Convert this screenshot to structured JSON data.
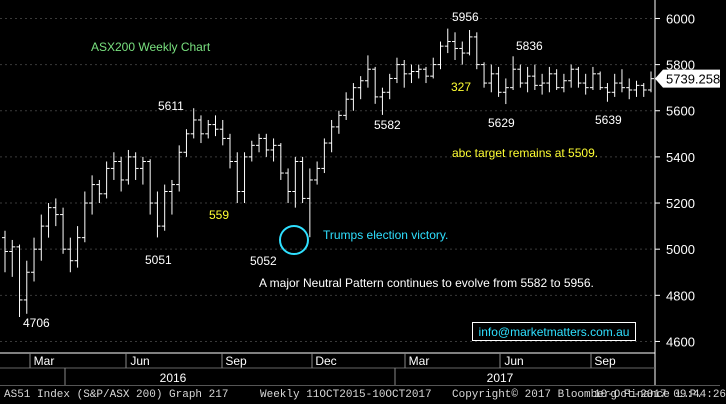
{
  "footer": {
    "security": "AS51 Index (S&P/ASX 200) Graph 217",
    "period": "Weekly 11OCT2015-10OCT2017",
    "copyright": "Copyright© 2017 Bloomberg Finance L.P.",
    "timestamp": "10-Oct-2017 09:44:26"
  },
  "email": "info@marketmatters.com.au",
  "colors": {
    "background": "#000000",
    "bars": "#ffffff",
    "title_text": "#79e07f",
    "yellow_text": "#ffff33",
    "cyan": "#2fe0ff",
    "tag_fill": "#ffffff"
  },
  "chart_data": {
    "type": "ohlc",
    "title": "ASX200 Weekly Chart",
    "frequency": "weekly",
    "ylim": [
      4550,
      6080
    ],
    "y_ticks": [
      4600,
      4800,
      5000,
      5200,
      5400,
      5600,
      5800,
      6000
    ],
    "x_month_labels": [
      "Mar",
      "Jun",
      "Sep",
      "Dec",
      "Mar",
      "Jun",
      "Sep"
    ],
    "x_year_labels": [
      "2016",
      "2017"
    ],
    "last_price": "5739.258",
    "annotations": {
      "chart_title": "ASX200 Weekly Chart",
      "neutral_pattern": "A major Neutral Pattern continues to evolve from 5582 to 5956.",
      "abc_target": "abc target remains at 5509.",
      "election": "Trumps election victory.",
      "low_4706": "4706",
      "high_5611": "5611",
      "low_5051": "5051",
      "low_559": "559",
      "low_5052": "5052",
      "low_5582": "5582",
      "high_5956": "5956",
      "high_327": "327",
      "high_5836": "5836",
      "low_5629": "5629",
      "low_5639": "5639"
    },
    "bars": [
      [
        5050,
        5080,
        4900,
        4990
      ],
      [
        4990,
        5040,
        4880,
        5010
      ],
      [
        5010,
        5020,
        4706,
        4780
      ],
      [
        4780,
        4950,
        4720,
        4900
      ],
      [
        4900,
        5050,
        4860,
        5000
      ],
      [
        5000,
        5150,
        4950,
        5100
      ],
      [
        5100,
        5200,
        5050,
        5180
      ],
      [
        5180,
        5220,
        5100,
        5150
      ],
      [
        5150,
        5180,
        4980,
        5000
      ],
      [
        5000,
        5050,
        4900,
        4950
      ],
      [
        4950,
        5100,
        4920,
        5050
      ],
      [
        5050,
        5250,
        5030,
        5200
      ],
      [
        5200,
        5320,
        5150,
        5280
      ],
      [
        5280,
        5300,
        5200,
        5240
      ],
      [
        5240,
        5380,
        5220,
        5350
      ],
      [
        5350,
        5420,
        5300,
        5380
      ],
      [
        5380,
        5400,
        5250,
        5300
      ],
      [
        5300,
        5430,
        5280,
        5400
      ],
      [
        5400,
        5420,
        5300,
        5350
      ],
      [
        5350,
        5400,
        5280,
        5380
      ],
      [
        5380,
        5390,
        5150,
        5200
      ],
      [
        5200,
        5250,
        5051,
        5100
      ],
      [
        5100,
        5280,
        5080,
        5250
      ],
      [
        5250,
        5300,
        5150,
        5280
      ],
      [
        5280,
        5450,
        5250,
        5420
      ],
      [
        5420,
        5520,
        5400,
        5500
      ],
      [
        5500,
        5611,
        5480,
        5560
      ],
      [
        5560,
        5580,
        5460,
        5500
      ],
      [
        5500,
        5560,
        5480,
        5540
      ],
      [
        5540,
        5580,
        5490,
        5520
      ],
      [
        5520,
        5560,
        5450,
        5480
      ],
      [
        5480,
        5500,
        5350,
        5380
      ],
      [
        5380,
        5420,
        5200,
        5250
      ],
      [
        5250,
        5420,
        5200,
        5400
      ],
      [
        5400,
        5470,
        5380,
        5450
      ],
      [
        5450,
        5500,
        5420,
        5480
      ],
      [
        5480,
        5500,
        5400,
        5430
      ],
      [
        5430,
        5480,
        5380,
        5450
      ],
      [
        5450,
        5460,
        5300,
        5330
      ],
      [
        5330,
        5350,
        5200,
        5250
      ],
      [
        5250,
        5400,
        5180,
        5380
      ],
      [
        5380,
        5400,
        5200,
        5220
      ],
      [
        5220,
        5350,
        5052,
        5300
      ],
      [
        5300,
        5380,
        5280,
        5350
      ],
      [
        5350,
        5480,
        5330,
        5460
      ],
      [
        5460,
        5560,
        5420,
        5530
      ],
      [
        5530,
        5600,
        5500,
        5580
      ],
      [
        5580,
        5680,
        5560,
        5650
      ],
      [
        5650,
        5720,
        5600,
        5700
      ],
      [
        5700,
        5750,
        5650,
        5730
      ],
      [
        5730,
        5840,
        5700,
        5780
      ],
      [
        5780,
        5790,
        5630,
        5660
      ],
      [
        5660,
        5700,
        5582,
        5680
      ],
      [
        5680,
        5760,
        5650,
        5740
      ],
      [
        5740,
        5830,
        5720,
        5800
      ],
      [
        5800,
        5820,
        5700,
        5760
      ],
      [
        5760,
        5800,
        5720,
        5770
      ],
      [
        5770,
        5800,
        5740,
        5780
      ],
      [
        5780,
        5790,
        5720,
        5750
      ],
      [
        5750,
        5830,
        5740,
        5800
      ],
      [
        5800,
        5900,
        5780,
        5880
      ],
      [
        5880,
        5956,
        5850,
        5900
      ],
      [
        5900,
        5940,
        5820,
        5870
      ],
      [
        5870,
        5900,
        5800,
        5850
      ],
      [
        5850,
        5950,
        5840,
        5920
      ],
      [
        5920,
        5940,
        5780,
        5800
      ],
      [
        5800,
        5810,
        5700,
        5720
      ],
      [
        5720,
        5800,
        5680,
        5760
      ],
      [
        5760,
        5790,
        5660,
        5680
      ],
      [
        5680,
        5740,
        5629,
        5700
      ],
      [
        5700,
        5836,
        5690,
        5780
      ],
      [
        5780,
        5800,
        5700,
        5720
      ],
      [
        5720,
        5790,
        5680,
        5750
      ],
      [
        5750,
        5800,
        5690,
        5710
      ],
      [
        5710,
        5760,
        5670,
        5720
      ],
      [
        5720,
        5790,
        5680,
        5760
      ],
      [
        5760,
        5780,
        5690,
        5700
      ],
      [
        5700,
        5760,
        5680,
        5730
      ],
      [
        5730,
        5800,
        5700,
        5780
      ],
      [
        5780,
        5790,
        5700,
        5720
      ],
      [
        5720,
        5760,
        5670,
        5700
      ],
      [
        5700,
        5790,
        5690,
        5760
      ],
      [
        5760,
        5770,
        5690,
        5700
      ],
      [
        5700,
        5720,
        5639,
        5680
      ],
      [
        5680,
        5760,
        5660,
        5720
      ],
      [
        5720,
        5780,
        5680,
        5700
      ],
      [
        5700,
        5740,
        5650,
        5690
      ],
      [
        5690,
        5730,
        5660,
        5710
      ],
      [
        5710,
        5720,
        5660,
        5690
      ],
      [
        5690,
        5770,
        5680,
        5739
      ]
    ]
  }
}
